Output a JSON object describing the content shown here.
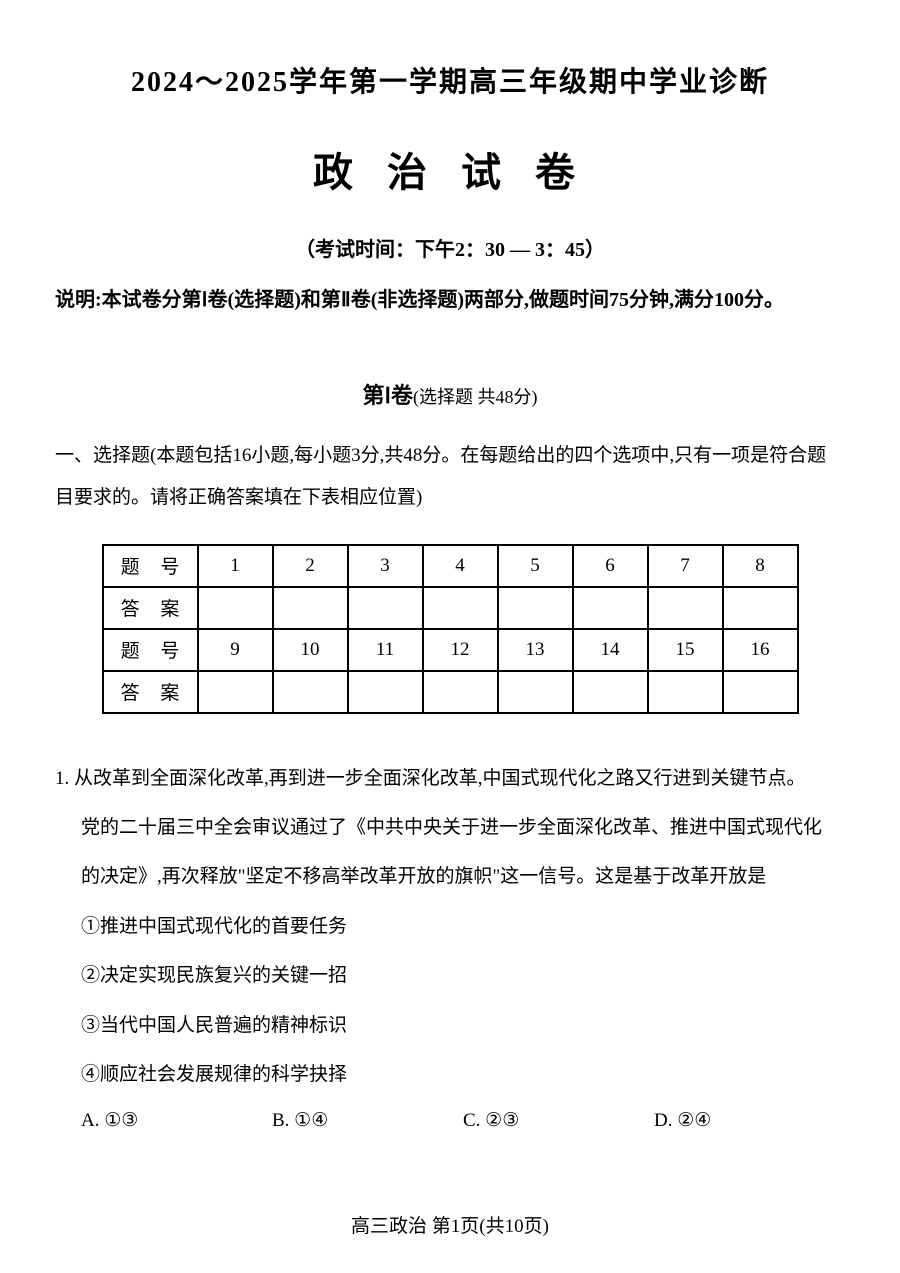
{
  "header_title": "2024～2025学年第一学期高三年级期中学业诊断",
  "main_title": "政 治 试 卷",
  "exam_time": "（考试时间：下午2：30 — 3：45）",
  "instructions": "说明:本试卷分第Ⅰ卷(选择题)和第Ⅱ卷(非选择题)两部分,做题时间75分钟,满分100分。",
  "section1": {
    "title_main": "第Ⅰ卷",
    "title_sub": "(选择题  共48分)"
  },
  "question_intro": "一、选择题(本题包括16小题,每小题3分,共48分。在每题给出的四个选项中,只有一项是符合题目要求的。请将正确答案填在下表相应位置)",
  "table": {
    "row1_label": "题 号",
    "row1_cells": [
      "1",
      "2",
      "3",
      "4",
      "5",
      "6",
      "7",
      "8"
    ],
    "row2_label": "答 案",
    "row2_cells": [
      "",
      "",
      "",
      "",
      "",
      "",
      "",
      ""
    ],
    "row3_label": "题 号",
    "row3_cells": [
      "9",
      "10",
      "11",
      "12",
      "13",
      "14",
      "15",
      "16"
    ],
    "row4_label": "答 案",
    "row4_cells": [
      "",
      "",
      "",
      "",
      "",
      "",
      "",
      ""
    ]
  },
  "q1": {
    "line1": "1. 从改革到全面深化改革,再到进一步全面深化改革,中国式现代化之路又行进到关键节点。",
    "line2": "党的二十届三中全会审议通过了《中共中央关于进一步全面深化改革、推进中国式现代化",
    "line3": "的决定》,再次释放\"坚定不移高举改革开放的旗帜\"这一信号。这是基于改革开放是",
    "opt1": "①推进中国式现代化的首要任务",
    "opt2": "②决定实现民族复兴的关键一招",
    "opt3": "③当代中国人民普遍的精神标识",
    "opt4": "④顺应社会发展规律的科学抉择",
    "choiceA": "A. ①③",
    "choiceB": "B. ①④",
    "choiceC": "C. ②③",
    "choiceD": "D. ②④"
  },
  "footer": "高三政治  第1页(共10页)"
}
